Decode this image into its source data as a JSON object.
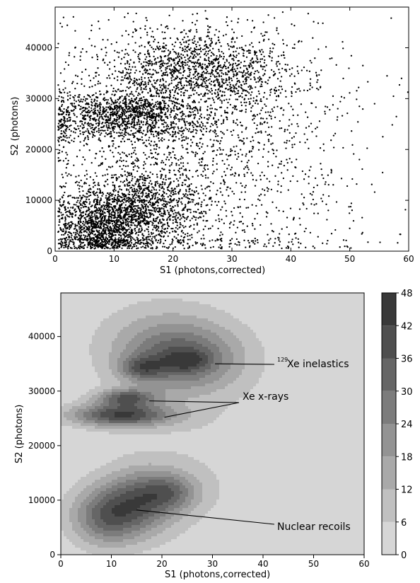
{
  "colors": {
    "background": "#ffffff",
    "points": "#000000",
    "annotation_line": "#000000"
  },
  "chart_data": [
    {
      "type": "scatter",
      "title": "",
      "xlabel": "S1 (photons,corrected)",
      "ylabel": "S2 (photons)",
      "xlim": [
        0,
        60
      ],
      "ylim": [
        0,
        48000
      ],
      "xticks": [
        0,
        10,
        20,
        30,
        40,
        50,
        60
      ],
      "yticks": [
        0,
        10000,
        20000,
        30000,
        40000
      ],
      "grid": false,
      "legend": "none",
      "clusters": [
        {
          "center": [
            8,
            5000
          ],
          "spread": [
            4,
            3500
          ],
          "weight": 0.2
        },
        {
          "center": [
            15,
            9000
          ],
          "spread": [
            5,
            4000
          ],
          "weight": 0.16
        },
        {
          "center": [
            12,
            26000
          ],
          "spread": [
            7,
            2500
          ],
          "weight": 0.15
        },
        {
          "center": [
            13,
            28500
          ],
          "spread": [
            5,
            1600
          ],
          "weight": 0.04
        },
        {
          "center": [
            24,
            35500
          ],
          "spread": [
            8,
            4000
          ],
          "weight": 0.2
        },
        {
          "center": [
            25,
            20000
          ],
          "spread": [
            14,
            14000
          ],
          "weight": 0.25
        }
      ],
      "n_points": 6500
    },
    {
      "type": "heatmap",
      "subtype": "filled-contour",
      "title": "",
      "xlabel": "S1 (photons,corrected)",
      "ylabel": "S2 (photons)",
      "xlim": [
        0,
        60
      ],
      "ylim": [
        0,
        48000
      ],
      "xticks": [
        0,
        10,
        20,
        30,
        40,
        50,
        60
      ],
      "yticks": [
        0,
        10000,
        20000,
        30000,
        40000
      ],
      "colorbar": {
        "levels": [
          0,
          6,
          12,
          18,
          24,
          30,
          36,
          42,
          48
        ],
        "colors": [
          "#d6d6d6",
          "#c0c0c0",
          "#a9a9a9",
          "#939393",
          "#7c7c7c",
          "#666666",
          "#4f4f4f",
          "#393939",
          "#151515"
        ]
      },
      "blobs": [
        {
          "center": [
            9,
            7000
          ],
          "spread": [
            5,
            3800
          ],
          "peak": 30
        },
        {
          "center": [
            16,
            10000
          ],
          "spread": [
            5,
            4000
          ],
          "peak": 26
        },
        {
          "center": [
            22,
            11500
          ],
          "spread": [
            4,
            2500
          ],
          "peak": 20
        },
        {
          "center": [
            12,
            25600
          ],
          "spread": [
            7,
            1500
          ],
          "peak": 40
        },
        {
          "center": [
            13,
            28800
          ],
          "spread": [
            4,
            1100
          ],
          "peak": 30
        },
        {
          "center": [
            24,
            35800
          ],
          "spread": [
            8,
            4200
          ],
          "peak": 28
        },
        {
          "center": [
            16,
            34200
          ],
          "spread": [
            3,
            1500
          ],
          "peak": 20
        },
        {
          "center": [
            25,
            35600
          ],
          "spread": [
            3,
            1300
          ],
          "peak": 14
        },
        {
          "center": [
            20,
            40000
          ],
          "spread": [
            10,
            5500
          ],
          "peak": 10
        },
        {
          "center": [
            28,
            17000
          ],
          "spread": [
            16,
            15000
          ],
          "peak": 5
        }
      ],
      "annotations": [
        {
          "prefix": "129",
          "text": "Xe inelastics",
          "arrow_to": [
            [
              30.5,
              35000
            ]
          ]
        },
        {
          "prefix": "",
          "text": "Xe x-rays",
          "arrow_to": [
            [
              17.5,
              28200
            ],
            [
              20.5,
              25200
            ]
          ]
        },
        {
          "prefix": "",
          "text": "Nuclear recoils",
          "arrow_to": [
            [
              15,
              8200
            ]
          ]
        }
      ]
    }
  ]
}
